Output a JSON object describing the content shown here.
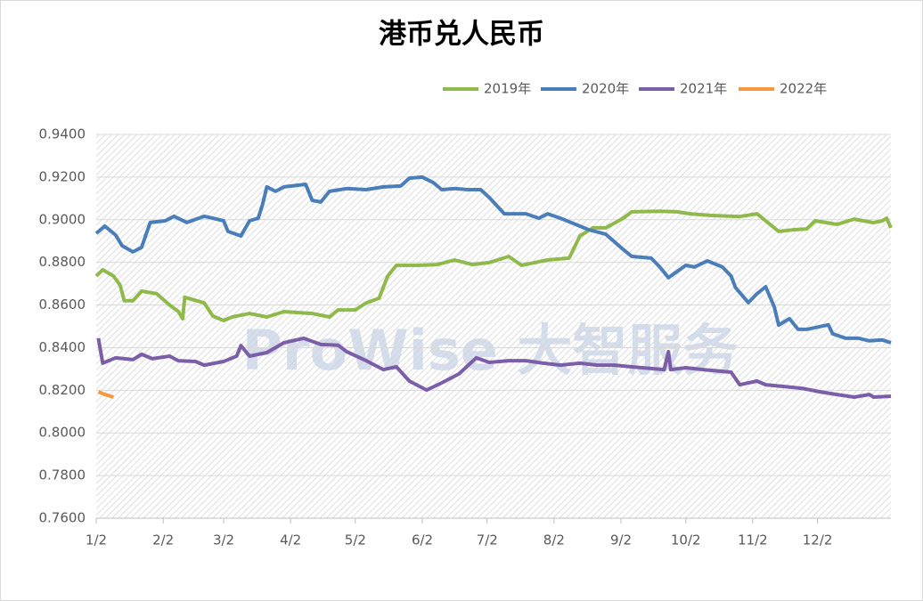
{
  "chart_data": {
    "type": "line",
    "title": "港币兑人民币",
    "watermark": "ProWise 大智服务",
    "xlim": [
      0,
      368
    ],
    "xticks": [
      {
        "value": 0,
        "label": "1/2"
      },
      {
        "value": 31,
        "label": "2/2"
      },
      {
        "value": 59,
        "label": "3/2"
      },
      {
        "value": 90,
        "label": "4/2"
      },
      {
        "value": 120,
        "label": "5/2"
      },
      {
        "value": 151,
        "label": "6/2"
      },
      {
        "value": 181,
        "label": "7/2"
      },
      {
        "value": 212,
        "label": "8/2"
      },
      {
        "value": 243,
        "label": "9/2"
      },
      {
        "value": 273,
        "label": "10/2"
      },
      {
        "value": 304,
        "label": "11/2"
      },
      {
        "value": 334,
        "label": "12/2"
      }
    ],
    "ylim": [
      0.76,
      0.94
    ],
    "yticks": [
      {
        "value": 0.76,
        "label": "0.7600"
      },
      {
        "value": 0.78,
        "label": "0.7800"
      },
      {
        "value": 0.8,
        "label": "0.8000"
      },
      {
        "value": 0.82,
        "label": "0.8200"
      },
      {
        "value": 0.84,
        "label": "0.8400"
      },
      {
        "value": 0.86,
        "label": "0.8600"
      },
      {
        "value": 0.88,
        "label": "0.8800"
      },
      {
        "value": 0.9,
        "label": "0.9000"
      },
      {
        "value": 0.92,
        "label": "0.9200"
      },
      {
        "value": 0.94,
        "label": "0.9400"
      }
    ],
    "grid": true,
    "series": [
      {
        "name": "2019年",
        "color": "#8fba4b",
        "x": [
          0,
          3,
          8,
          11,
          13,
          17,
          21,
          28,
          34,
          38,
          40,
          41,
          50,
          54,
          59,
          63,
          71,
          79,
          87,
          100,
          108,
          112,
          120,
          125,
          131,
          135,
          139,
          149,
          158,
          166,
          174,
          182,
          191,
          197,
          203,
          209,
          219,
          224,
          230,
          236,
          244,
          248,
          261,
          269,
          275,
          285,
          298,
          306,
          310,
          316,
          323,
          329,
          333,
          343,
          351,
          360,
          364,
          366,
          368
        ],
        "values": [
          0.8736,
          0.8765,
          0.8736,
          0.8694,
          0.862,
          0.862,
          0.8665,
          0.8653,
          0.86,
          0.857,
          0.8536,
          0.8636,
          0.861,
          0.8548,
          0.8527,
          0.8544,
          0.856,
          0.8544,
          0.8569,
          0.856,
          0.8544,
          0.8577,
          0.8577,
          0.861,
          0.8632,
          0.8736,
          0.8786,
          0.8786,
          0.879,
          0.8811,
          0.879,
          0.8799,
          0.8828,
          0.8786,
          0.8799,
          0.8811,
          0.882,
          0.8924,
          0.8962,
          0.8962,
          0.9007,
          0.9037,
          0.904,
          0.9037,
          0.9028,
          0.902,
          0.9015,
          0.9028,
          0.8995,
          0.8945,
          0.8953,
          0.8957,
          0.8995,
          0.8978,
          0.9003,
          0.8986,
          0.8995,
          0.9007,
          0.8962
        ]
      },
      {
        "name": "2020年",
        "color": "#4a7ebb",
        "x": [
          0,
          4,
          9,
          12,
          17,
          21,
          25,
          32,
          36,
          42,
          50,
          54,
          59,
          61,
          67,
          71,
          75,
          77,
          79,
          83,
          87,
          97,
          100,
          104,
          108,
          116,
          125,
          133,
          141,
          145,
          151,
          156,
          160,
          166,
          172,
          178,
          182,
          189,
          199,
          205,
          209,
          215,
          222,
          228,
          236,
          244,
          248,
          257,
          261,
          265,
          273,
          277,
          283,
          290,
          294,
          296,
          302,
          306,
          310,
          314,
          316,
          321,
          325,
          329,
          339,
          341,
          347,
          353,
          358,
          364,
          368
        ],
        "values": [
          0.8936,
          0.897,
          0.8928,
          0.8878,
          0.8849,
          0.887,
          0.8987,
          0.8995,
          0.9016,
          0.8987,
          0.9016,
          0.9007,
          0.8995,
          0.8945,
          0.8924,
          0.8995,
          0.9007,
          0.907,
          0.9154,
          0.9133,
          0.9154,
          0.9166,
          0.9091,
          0.9083,
          0.9133,
          0.9146,
          0.9141,
          0.9154,
          0.9158,
          0.9195,
          0.92,
          0.9175,
          0.9141,
          0.9146,
          0.9141,
          0.9141,
          0.9104,
          0.9028,
          0.9028,
          0.9007,
          0.9028,
          0.9007,
          0.8978,
          0.8953,
          0.8932,
          0.8861,
          0.8828,
          0.882,
          0.8778,
          0.8728,
          0.8786,
          0.8778,
          0.8807,
          0.8778,
          0.8736,
          0.8682,
          0.8611,
          0.8653,
          0.8686,
          0.859,
          0.8506,
          0.8536,
          0.8486,
          0.8486,
          0.8507,
          0.8465,
          0.8444,
          0.8444,
          0.8432,
          0.8436,
          0.8423
        ]
      },
      {
        "name": "2021年",
        "color": "#7b5ea7",
        "x": [
          1,
          3,
          9,
          17,
          21,
          26,
          34,
          38,
          46,
          50,
          59,
          65,
          67,
          71,
          79,
          87,
          96,
          104,
          112,
          116,
          125,
          133,
          139,
          145,
          153,
          160,
          168,
          176,
          182,
          191,
          199,
          207,
          215,
          224,
          232,
          240,
          248,
          263,
          265,
          266,
          273,
          281,
          294,
          298,
          306,
          310,
          318,
          327,
          335,
          343,
          351,
          358,
          360,
          368
        ],
        "values": [
          0.8444,
          0.8327,
          0.8352,
          0.8344,
          0.8369,
          0.8348,
          0.836,
          0.8339,
          0.8335,
          0.8318,
          0.8335,
          0.836,
          0.841,
          0.836,
          0.8377,
          0.8423,
          0.8444,
          0.8415,
          0.8411,
          0.8381,
          0.8339,
          0.8297,
          0.831,
          0.8243,
          0.8201,
          0.8235,
          0.8277,
          0.8352,
          0.8331,
          0.8339,
          0.8339,
          0.8327,
          0.8318,
          0.8327,
          0.8318,
          0.8318,
          0.831,
          0.8297,
          0.8381,
          0.8297,
          0.8306,
          0.8297,
          0.8285,
          0.8226,
          0.8243,
          0.8226,
          0.8218,
          0.8209,
          0.8193,
          0.818,
          0.8168,
          0.818,
          0.8168,
          0.8172
        ]
      },
      {
        "name": "2022年",
        "color": "#f59a3c",
        "x": [
          1,
          4,
          8
        ],
        "values": [
          0.8193,
          0.818,
          0.8168
        ]
      }
    ]
  }
}
